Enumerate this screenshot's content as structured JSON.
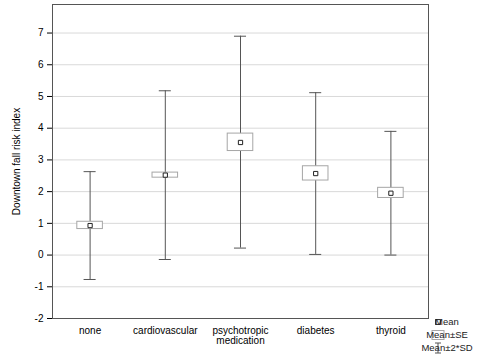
{
  "chart_data": {
    "type": "box",
    "y_label": "Downtown fall risk index",
    "categories": [
      "none",
      "cardiovascular",
      "psychotropic\nmedication",
      "diabetes",
      "thyroid"
    ],
    "values": [
      0.93,
      2.52,
      3.55,
      2.57,
      1.95
    ],
    "se_low": [
      0.82,
      2.44,
      3.28,
      2.35,
      1.8
    ],
    "se_high": [
      1.05,
      2.6,
      3.83,
      2.8,
      2.12
    ],
    "sd2_low": [
      -0.77,
      -0.14,
      0.22,
      0.02,
      0.0
    ],
    "sd2_high": [
      2.63,
      5.18,
      6.9,
      5.12,
      3.9
    ],
    "ylim": [
      -2,
      7.9
    ],
    "yticks": [
      -2,
      -1,
      0,
      1,
      2,
      3,
      4,
      5,
      6,
      7
    ],
    "grid": true,
    "legend": "bottom-right",
    "legend_labels": [
      "Mean",
      "Mean±SE",
      "Mean±2*SD"
    ]
  }
}
